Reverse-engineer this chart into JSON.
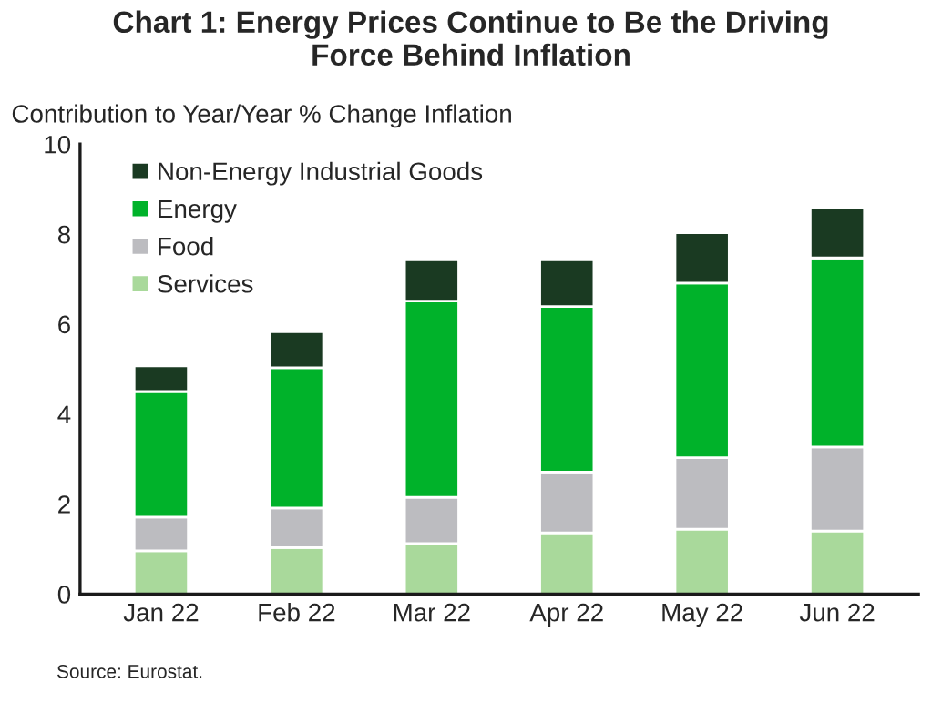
{
  "chart_data": {
    "type": "bar",
    "stacked": true,
    "title": "Chart 1: Energy Prices Continue to Be the Driving\nForce Behind Inflation",
    "ylabel": "Contribution to Year/Year % Change Inflation",
    "categories": [
      "Jan 22",
      "Feb 22",
      "Mar 22",
      "Apr 22",
      "May 22",
      "Jun 22"
    ],
    "series": [
      {
        "name": "Services",
        "color": "#a9d99b",
        "values": [
          0.96,
          1.03,
          1.12,
          1.36,
          1.44,
          1.4
        ]
      },
      {
        "name": "Food",
        "color": "#bcbcc0",
        "values": [
          0.75,
          0.88,
          1.03,
          1.35,
          1.59,
          1.87
        ]
      },
      {
        "name": "Energy",
        "color": "#00b22a",
        "values": [
          2.79,
          3.12,
          4.36,
          3.68,
          3.88,
          4.2
        ]
      },
      {
        "name": "Non-Energy Industrial Goods",
        "color": "#1a3a22",
        "values": [
          0.57,
          0.8,
          0.92,
          1.04,
          1.12,
          1.12
        ]
      }
    ],
    "ylim": [
      0,
      10
    ],
    "yticks": [
      0,
      2,
      4,
      6,
      8,
      10
    ],
    "legend": "top left",
    "grid": false,
    "annotations": [
      "Source: Eurostat."
    ]
  }
}
